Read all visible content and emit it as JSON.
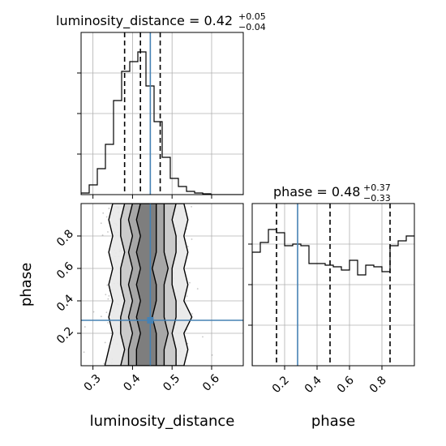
{
  "chart_data": {
    "type": "corner",
    "parameters": [
      "luminosity_distance",
      "phase"
    ],
    "colors": {
      "truth": "#4682b4",
      "hist": "#000000",
      "grid": "#b0b0b0",
      "scatter": "#7f7f7f"
    },
    "panels": [
      {
        "id": "hist-luminosity-distance",
        "type": "histogram",
        "parameter": "luminosity_distance",
        "title_main": "luminosity_distance = 0.42",
        "title_sup": "+0.05",
        "title_sub": "−0.04",
        "xlim": [
          0.27,
          0.68
        ],
        "ylim": [
          0,
          1.0
        ],
        "bin_width": 0.0205,
        "counts": [
          0.01,
          0.06,
          0.16,
          0.31,
          0.58,
          0.76,
          0.82,
          0.88,
          0.67,
          0.45,
          0.23,
          0.1,
          0.05,
          0.02,
          0.01,
          0.005,
          0,
          0,
          0,
          0
        ],
        "quantiles": [
          0.38,
          0.42,
          0.47
        ],
        "truth": 0.445,
        "x_grid": [
          0.3,
          0.4,
          0.5,
          0.6
        ],
        "y_ticks": [
          0.25,
          0.5,
          0.75
        ]
      },
      {
        "id": "hist-phase",
        "type": "histogram",
        "parameter": "phase",
        "title_main": "phase = 0.48",
        "title_sup": "+0.37",
        "title_sub": "−0.33",
        "xlim": [
          0.0,
          1.0
        ],
        "ylim": [
          0,
          1.0
        ],
        "bin_width": 0.05,
        "counts": [
          0.7,
          0.76,
          0.84,
          0.82,
          0.74,
          0.75,
          0.74,
          0.63,
          0.63,
          0.62,
          0.61,
          0.59,
          0.65,
          0.56,
          0.62,
          0.61,
          0.58,
          0.74,
          0.77,
          0.8
        ],
        "quantiles": [
          0.15,
          0.48,
          0.85
        ],
        "truth": 0.28,
        "x_ticks": [
          0.2,
          0.4,
          0.6,
          0.8
        ],
        "y_ticks": [
          0.25,
          0.5,
          0.75
        ]
      },
      {
        "id": "2d-luminosity-distance-phase",
        "type": "contour2d",
        "xlim": [
          0.27,
          0.68
        ],
        "ylim": [
          0.0,
          1.0
        ],
        "x_ticks": [
          0.3,
          0.4,
          0.5,
          0.6
        ],
        "y_ticks": [
          0.2,
          0.4,
          0.6,
          0.8
        ],
        "xlabel": "luminosity_distance",
        "ylabel": "phase",
        "truth": {
          "x": 0.445,
          "y": 0.28
        },
        "contours": [
          {
            "fill": "#e8e8e8",
            "xl": [
              0.33,
              0.34,
              0.35,
              0.34,
              0.35,
              0.34,
              0.35,
              0.34,
              0.35,
              0.34,
              0.35
            ],
            "xr": [
              0.53,
              0.54,
              0.53,
              0.55,
              0.53,
              0.54,
              0.53,
              0.54,
              0.53,
              0.54,
              0.53
            ]
          },
          {
            "fill": "#c8c8c8",
            "xl": [
              0.37,
              0.38,
              0.37,
              0.37,
              0.38,
              0.37,
              0.37,
              0.38,
              0.37,
              0.37,
              0.38
            ],
            "xr": [
              0.51,
              0.51,
              0.5,
              0.51,
              0.51,
              0.5,
              0.5,
              0.51,
              0.51,
              0.5,
              0.51
            ]
          },
          {
            "fill": "#a3a3a3",
            "xl": [
              0.39,
              0.39,
              0.4,
              0.39,
              0.4,
              0.39,
              0.4,
              0.39,
              0.4,
              0.39,
              0.4
            ],
            "xr": [
              0.48,
              0.48,
              0.49,
              0.48,
              0.48,
              0.48,
              0.49,
              0.48,
              0.48,
              0.48,
              0.48
            ]
          },
          {
            "fill": "#7a7a7a",
            "xl": [
              0.41,
              0.41,
              0.42,
              0.41,
              0.42,
              0.41,
              0.42,
              0.41,
              0.42,
              0.41,
              0.42
            ],
            "xr": [
              0.46,
              0.46,
              0.46,
              0.45,
              0.46,
              0.46,
              0.45,
              0.46,
              0.46,
              0.46,
              0.46
            ]
          }
        ]
      }
    ]
  }
}
